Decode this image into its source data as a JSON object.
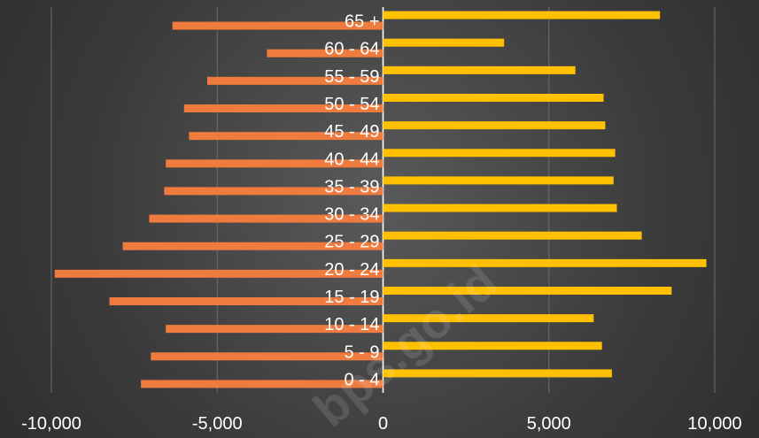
{
  "chart_data": {
    "type": "bar",
    "orientation": "horizontal",
    "title": "",
    "xlabel": "",
    "ylabel": "",
    "categories": [
      "0 - 4",
      "5 - 9",
      "10 - 14",
      "15 - 19",
      "20 - 24",
      "25 - 29",
      "30 - 34",
      "35 - 39",
      "40 - 44",
      "45 - 49",
      "50 - 54",
      "55 - 59",
      "60 - 64",
      "65 +"
    ],
    "series": [
      {
        "values": [
          -7300,
          -7000,
          -6550,
          -8250,
          -9900,
          -7850,
          -7050,
          -6600,
          -6550,
          -5850,
          -6000,
          -5300,
          -3500,
          -6350
        ],
        "color": "#f07b3f"
      },
      {
        "values": [
          6900,
          6600,
          6350,
          8700,
          9750,
          7800,
          7050,
          6950,
          7000,
          6700,
          6650,
          5800,
          3650,
          8350
        ],
        "color": "#ffc000"
      }
    ],
    "xlim": [
      -10000,
      10000
    ],
    "xticks": [
      -10000,
      -5000,
      0,
      5000,
      10000
    ],
    "xtick_labels": [
      "-10,000",
      "-5,000",
      "0",
      "5,000",
      "10,000"
    ],
    "grid": true,
    "legend": "none",
    "watermark": "bps.go.id"
  }
}
